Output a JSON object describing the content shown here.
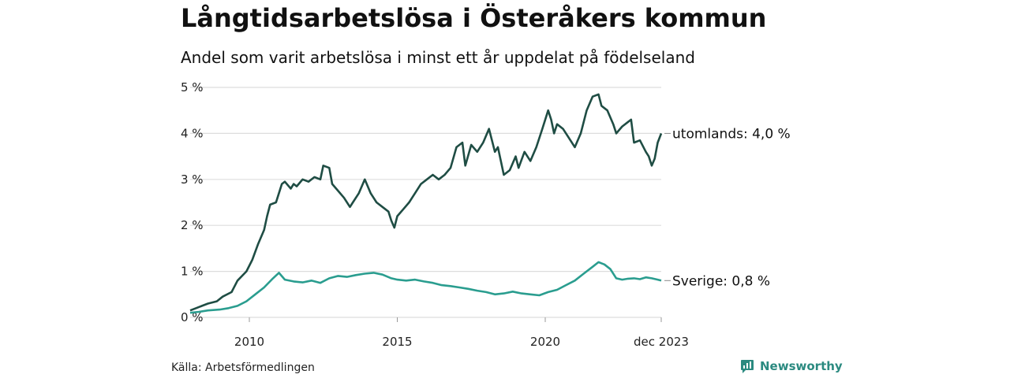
{
  "title": "Långtidsarbetslösa i Österåkers kommun",
  "subtitle": "Andel som varit arbetslösa i minst ett år uppdelat på födelseland",
  "source": "Källa: Arbetsförmedlingen",
  "brand": "Newsworthy",
  "brand_icon": "newsworthy-logo-icon",
  "colors": {
    "utomlands": "#1f4d44",
    "sverige": "#2a9d8f",
    "grid": "#dddddd"
  },
  "chart_data": {
    "type": "line",
    "title": "Långtidsarbetslösa i Österåkers kommun",
    "xlabel": "",
    "ylabel": "",
    "ylim": [
      0,
      5
    ],
    "xlim": [
      2008.0,
      2023.92
    ],
    "y_ticks": [
      {
        "value": 0,
        "label": "0 %"
      },
      {
        "value": 1,
        "label": "1 %"
      },
      {
        "value": 2,
        "label": "2 %"
      },
      {
        "value": 3,
        "label": "3 %"
      },
      {
        "value": 4,
        "label": "4 %"
      },
      {
        "value": 5,
        "label": "5 %"
      }
    ],
    "x_ticks": [
      {
        "value": 2010,
        "label": "2010"
      },
      {
        "value": 2015,
        "label": "2015"
      },
      {
        "value": 2020,
        "label": "2020"
      },
      {
        "value": 2023.92,
        "label": "dec 2023"
      }
    ],
    "series": [
      {
        "name": "utomlands",
        "end_label": "utomlands: 4,0 %",
        "color": "#1f4d44",
        "points": [
          [
            2008.0,
            0.15
          ],
          [
            2008.2,
            0.2
          ],
          [
            2008.4,
            0.25
          ],
          [
            2008.6,
            0.3
          ],
          [
            2008.9,
            0.35
          ],
          [
            2009.1,
            0.45
          ],
          [
            2009.4,
            0.55
          ],
          [
            2009.6,
            0.8
          ],
          [
            2009.9,
            1.0
          ],
          [
            2010.1,
            1.25
          ],
          [
            2010.3,
            1.6
          ],
          [
            2010.5,
            1.9
          ],
          [
            2010.6,
            2.2
          ],
          [
            2010.7,
            2.45
          ],
          [
            2010.9,
            2.5
          ],
          [
            2011.0,
            2.7
          ],
          [
            2011.1,
            2.9
          ],
          [
            2011.2,
            2.95
          ],
          [
            2011.4,
            2.8
          ],
          [
            2011.5,
            2.9
          ],
          [
            2011.6,
            2.85
          ],
          [
            2011.8,
            3.0
          ],
          [
            2012.0,
            2.95
          ],
          [
            2012.2,
            3.05
          ],
          [
            2012.4,
            3.0
          ],
          [
            2012.5,
            3.3
          ],
          [
            2012.7,
            3.25
          ],
          [
            2012.8,
            2.9
          ],
          [
            2013.0,
            2.75
          ],
          [
            2013.2,
            2.6
          ],
          [
            2013.4,
            2.4
          ],
          [
            2013.5,
            2.5
          ],
          [
            2013.7,
            2.7
          ],
          [
            2013.9,
            3.0
          ],
          [
            2014.1,
            2.7
          ],
          [
            2014.3,
            2.5
          ],
          [
            2014.5,
            2.4
          ],
          [
            2014.7,
            2.3
          ],
          [
            2014.8,
            2.1
          ],
          [
            2014.9,
            1.95
          ],
          [
            2015.0,
            2.2
          ],
          [
            2015.2,
            2.35
          ],
          [
            2015.4,
            2.5
          ],
          [
            2015.6,
            2.7
          ],
          [
            2015.8,
            2.9
          ],
          [
            2016.0,
            3.0
          ],
          [
            2016.2,
            3.1
          ],
          [
            2016.4,
            3.0
          ],
          [
            2016.6,
            3.1
          ],
          [
            2016.8,
            3.25
          ],
          [
            2017.0,
            3.7
          ],
          [
            2017.2,
            3.8
          ],
          [
            2017.3,
            3.3
          ],
          [
            2017.5,
            3.75
          ],
          [
            2017.7,
            3.6
          ],
          [
            2017.9,
            3.8
          ],
          [
            2018.1,
            4.1
          ],
          [
            2018.3,
            3.6
          ],
          [
            2018.4,
            3.7
          ],
          [
            2018.6,
            3.1
          ],
          [
            2018.8,
            3.2
          ],
          [
            2019.0,
            3.5
          ],
          [
            2019.1,
            3.25
          ],
          [
            2019.3,
            3.6
          ],
          [
            2019.5,
            3.4
          ],
          [
            2019.7,
            3.7
          ],
          [
            2019.9,
            4.1
          ],
          [
            2020.1,
            4.5
          ],
          [
            2020.2,
            4.3
          ],
          [
            2020.3,
            4.0
          ],
          [
            2020.4,
            4.2
          ],
          [
            2020.6,
            4.1
          ],
          [
            2020.8,
            3.9
          ],
          [
            2021.0,
            3.7
          ],
          [
            2021.2,
            4.0
          ],
          [
            2021.4,
            4.5
          ],
          [
            2021.6,
            4.8
          ],
          [
            2021.8,
            4.85
          ],
          [
            2021.9,
            4.6
          ],
          [
            2022.1,
            4.5
          ],
          [
            2022.3,
            4.2
          ],
          [
            2022.4,
            4.0
          ],
          [
            2022.6,
            4.15
          ],
          [
            2022.8,
            4.25
          ],
          [
            2022.9,
            4.3
          ],
          [
            2023.0,
            3.8
          ],
          [
            2023.2,
            3.85
          ],
          [
            2023.4,
            3.6
          ],
          [
            2023.5,
            3.5
          ],
          [
            2023.6,
            3.3
          ],
          [
            2023.7,
            3.45
          ],
          [
            2023.8,
            3.8
          ],
          [
            2023.92,
            4.0
          ]
        ]
      },
      {
        "name": "Sverige",
        "end_label": "Sverige: 0,8 %",
        "color": "#2a9d8f",
        "points": [
          [
            2008.0,
            0.1
          ],
          [
            2008.3,
            0.12
          ],
          [
            2008.6,
            0.15
          ],
          [
            2009.0,
            0.17
          ],
          [
            2009.3,
            0.2
          ],
          [
            2009.6,
            0.25
          ],
          [
            2009.9,
            0.35
          ],
          [
            2010.2,
            0.5
          ],
          [
            2010.5,
            0.65
          ],
          [
            2010.8,
            0.85
          ],
          [
            2011.0,
            0.97
          ],
          [
            2011.2,
            0.82
          ],
          [
            2011.5,
            0.78
          ],
          [
            2011.8,
            0.76
          ],
          [
            2012.1,
            0.8
          ],
          [
            2012.4,
            0.75
          ],
          [
            2012.7,
            0.85
          ],
          [
            2013.0,
            0.9
          ],
          [
            2013.3,
            0.88
          ],
          [
            2013.6,
            0.92
          ],
          [
            2013.9,
            0.95
          ],
          [
            2014.2,
            0.97
          ],
          [
            2014.5,
            0.93
          ],
          [
            2014.8,
            0.85
          ],
          [
            2015.0,
            0.82
          ],
          [
            2015.3,
            0.8
          ],
          [
            2015.6,
            0.82
          ],
          [
            2015.9,
            0.78
          ],
          [
            2016.2,
            0.75
          ],
          [
            2016.5,
            0.7
          ],
          [
            2016.8,
            0.68
          ],
          [
            2017.1,
            0.65
          ],
          [
            2017.4,
            0.62
          ],
          [
            2017.7,
            0.58
          ],
          [
            2018.0,
            0.55
          ],
          [
            2018.3,
            0.5
          ],
          [
            2018.6,
            0.52
          ],
          [
            2018.9,
            0.56
          ],
          [
            2019.2,
            0.52
          ],
          [
            2019.5,
            0.5
          ],
          [
            2019.8,
            0.48
          ],
          [
            2020.1,
            0.55
          ],
          [
            2020.4,
            0.6
          ],
          [
            2020.7,
            0.7
          ],
          [
            2021.0,
            0.8
          ],
          [
            2021.3,
            0.95
          ],
          [
            2021.6,
            1.1
          ],
          [
            2021.8,
            1.2
          ],
          [
            2022.0,
            1.15
          ],
          [
            2022.2,
            1.05
          ],
          [
            2022.4,
            0.85
          ],
          [
            2022.6,
            0.82
          ],
          [
            2022.8,
            0.84
          ],
          [
            2023.0,
            0.85
          ],
          [
            2023.2,
            0.83
          ],
          [
            2023.4,
            0.87
          ],
          [
            2023.6,
            0.85
          ],
          [
            2023.8,
            0.82
          ],
          [
            2023.92,
            0.8
          ]
        ]
      }
    ]
  }
}
